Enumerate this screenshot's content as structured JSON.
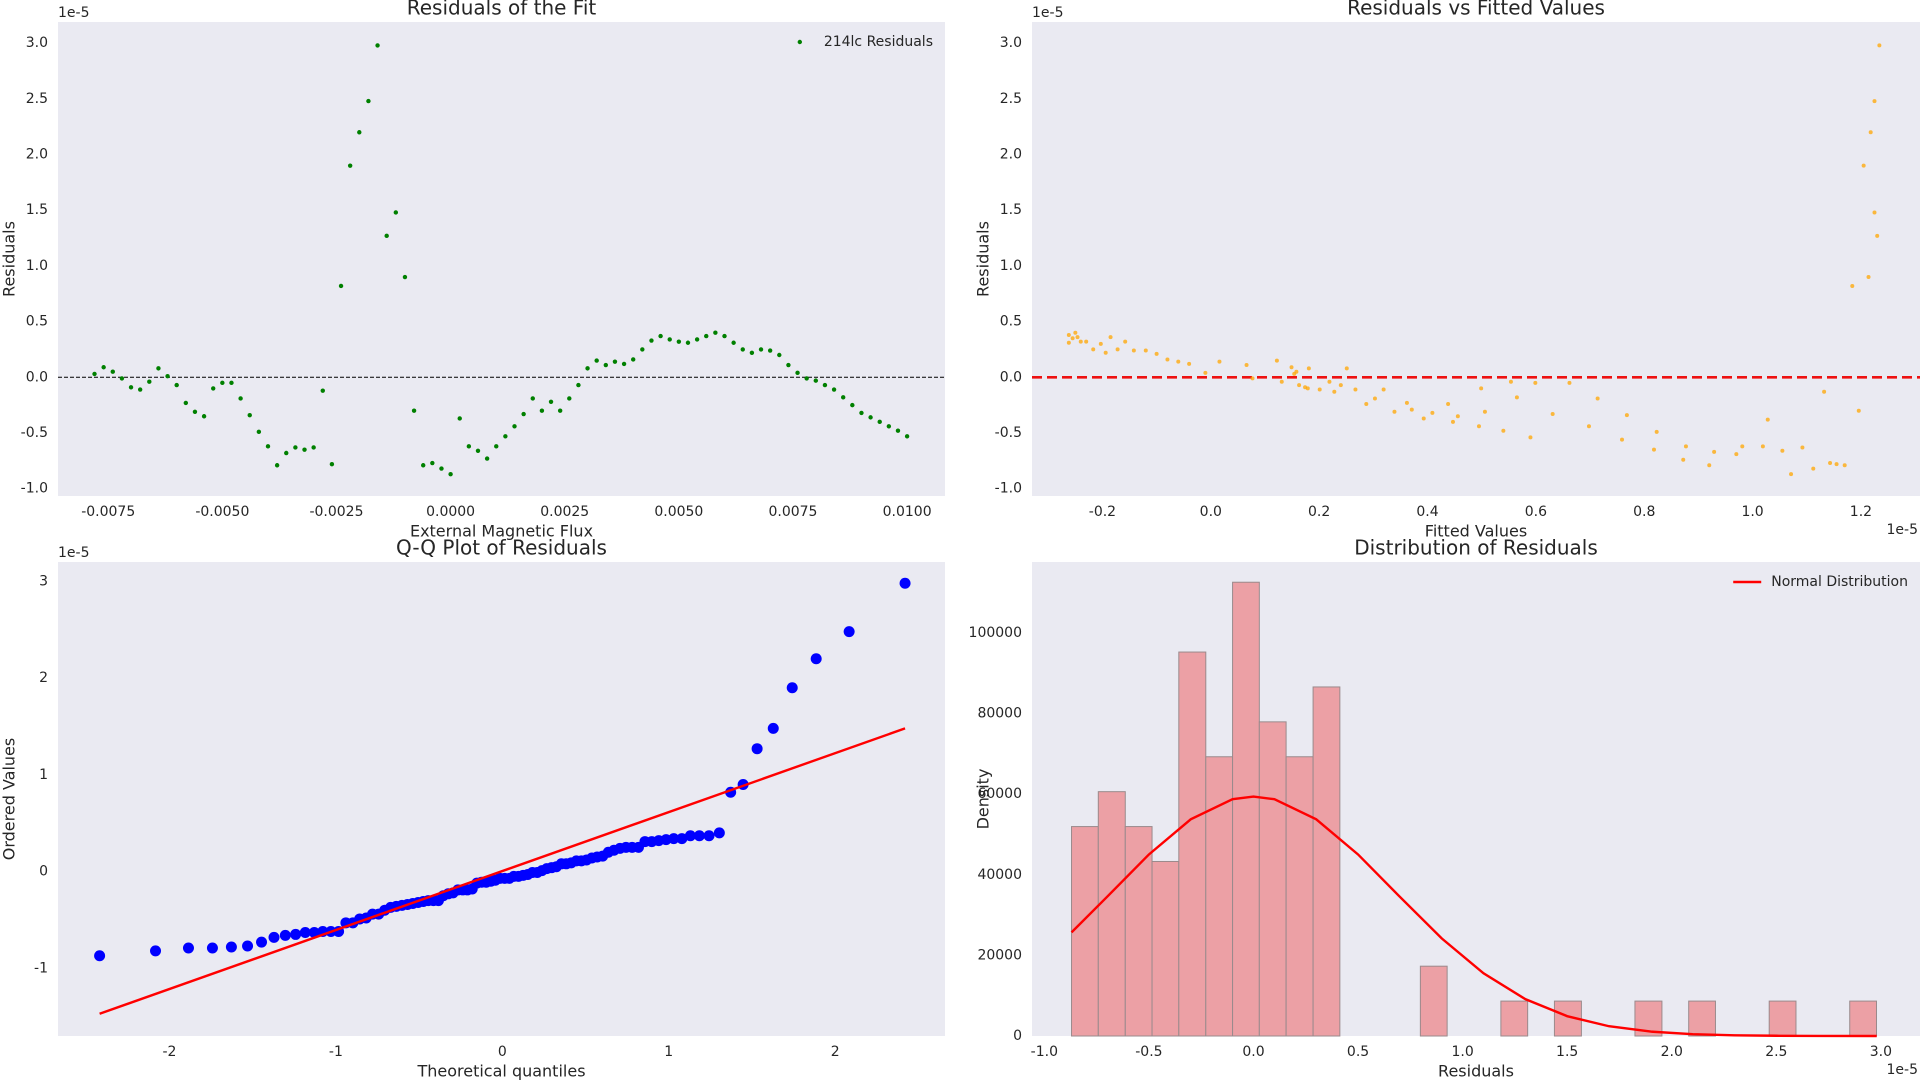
{
  "chart_data": [
    {
      "type": "scatter",
      "title": "Residuals of the Fit",
      "xlabel": "External Magnetic Flux",
      "ylabel": "Residuals",
      "y_offset_label": "1e-5",
      "xlim": [
        -0.0086,
        0.01083
      ],
      "ylim": [
        -1.066,
        3.19
      ],
      "xticks": [
        {
          "value": -0.0075,
          "label": "-0.0075"
        },
        {
          "value": -0.005,
          "label": "-0.0050"
        },
        {
          "value": -0.0025,
          "label": "-0.0025"
        },
        {
          "value": 0,
          "label": "0.0000"
        },
        {
          "value": 0.0025,
          "label": "0.0025"
        },
        {
          "value": 0.005,
          "label": "0.0050"
        },
        {
          "value": 0.0075,
          "label": "0.0075"
        },
        {
          "value": 0.01,
          "label": "0.0100"
        }
      ],
      "yticks": [
        {
          "value": -1,
          "label": "-1.0"
        },
        -0.5,
        {
          "value": 0,
          "label": "0.0"
        },
        0.5,
        {
          "value": 1,
          "label": "1.0"
        },
        1.5,
        {
          "value": 2,
          "label": "2.0"
        },
        2.5,
        {
          "value": 3,
          "label": "3.0"
        }
      ],
      "hline": 0,
      "hline_color": "#000000",
      "legend": "upper right",
      "series": [
        {
          "name": "214lc Residuals",
          "color": "#008000",
          "x": [
            -0.0078,
            -0.0076,
            -0.0074,
            -0.0072,
            -0.007,
            -0.0068,
            -0.0066,
            -0.0064,
            -0.0062,
            -0.006,
            -0.0058,
            -0.0056,
            -0.0054,
            -0.0052,
            -0.005,
            -0.0048,
            -0.0046,
            -0.0044,
            -0.0042,
            -0.004,
            -0.0038,
            -0.0036,
            -0.0034,
            -0.0032,
            -0.003,
            -0.0028,
            -0.0026,
            -0.0024,
            -0.0022,
            -0.002,
            -0.0018,
            -0.0016,
            -0.0014,
            -0.0012,
            -0.001,
            -0.0008,
            -0.0006,
            -0.0004,
            -0.0002,
            0,
            0.0002,
            0.0004,
            0.0006,
            0.0008,
            0.001,
            0.0012,
            0.0014,
            0.0016,
            0.0018,
            0.002,
            0.0022,
            0.0024,
            0.0026,
            0.0028,
            0.003,
            0.0032,
            0.0034,
            0.0036,
            0.0038,
            0.004,
            0.0042,
            0.0044,
            0.0046,
            0.0048,
            0.005,
            0.0052,
            0.0054,
            0.0056,
            0.0058,
            0.006,
            0.0062,
            0.0064,
            0.0066,
            0.0068,
            0.007,
            0.0072,
            0.0074,
            0.0076,
            0.0078,
            0.008,
            0.0082,
            0.0084,
            0.0086,
            0.0088,
            0.009,
            0.0092,
            0.0094,
            0.0096,
            0.0098,
            0.01
          ],
          "y": [
            0.03,
            0.09,
            0.05,
            -0.01,
            -0.09,
            -0.11,
            -0.04,
            0.08,
            0.01,
            -0.07,
            -0.23,
            -0.31,
            -0.35,
            -0.1,
            -0.05,
            -0.05,
            -0.19,
            -0.34,
            -0.49,
            -0.62,
            -0.79,
            -0.68,
            -0.63,
            -0.65,
            -0.63,
            -0.12,
            -0.78,
            0.82,
            1.9,
            2.2,
            2.48,
            2.98,
            1.27,
            1.48,
            0.9,
            -0.3,
            -0.79,
            -0.77,
            -0.82,
            -0.87,
            -0.37,
            -0.62,
            -0.66,
            -0.73,
            -0.62,
            -0.53,
            -0.44,
            -0.33,
            -0.19,
            -0.3,
            -0.22,
            -0.3,
            -0.19,
            -0.07,
            0.08,
            0.15,
            0.11,
            0.14,
            0.12,
            0.16,
            0.25,
            0.33,
            0.37,
            0.34,
            0.32,
            0.31,
            0.34,
            0.37,
            0.4,
            0.37,
            0.31,
            0.25,
            0.22,
            0.25,
            0.24,
            0.2,
            0.11,
            0.04,
            -0.01,
            -0.03,
            -0.07,
            -0.11,
            -0.18,
            -0.25,
            -0.32,
            -0.36,
            -0.4,
            -0.44,
            -0.48,
            -0.53
          ]
        }
      ]
    },
    {
      "type": "scatter",
      "title": "Residuals vs Fitted Values",
      "xlabel": "Fitted Values",
      "ylabel": "Residuals",
      "y_offset_label": "1e-5",
      "x_offset_label": "1e-5",
      "xlim": [
        -0.33,
        1.309
      ],
      "ylim": [
        -1.066,
        3.19
      ],
      "xticks": [
        -0.2,
        {
          "value": 0,
          "label": "0.0"
        },
        0.2,
        0.4,
        0.6,
        0.8,
        {
          "value": 1,
          "label": "1.0"
        },
        1.2
      ],
      "yticks": [
        {
          "value": -1,
          "label": "-1.0"
        },
        -0.5,
        {
          "value": 0,
          "label": "0.0"
        },
        0.5,
        {
          "value": 1,
          "label": "1.0"
        },
        1.5,
        {
          "value": 2,
          "label": "2.0"
        },
        2.5,
        {
          "value": 3,
          "label": "3.0"
        }
      ],
      "hline": 0,
      "hline_color": "#ee1111",
      "series": [
        {
          "color": "#ffa500",
          "x": [
            -0.262,
            -0.255,
            -0.25,
            -0.246,
            -0.262,
            -0.24,
            -0.23,
            -0.217,
            -0.203,
            -0.194,
            -0.185,
            -0.172,
            -0.158,
            -0.142,
            -0.12,
            -0.1,
            -0.08,
            -0.06,
            -0.04,
            -0.01,
            0.016,
            0.066,
            0.077,
            0.122,
            0.131,
            0.149,
            0.154,
            0.158,
            0.163,
            0.174,
            0.181,
            0.179,
            0.201,
            0.219,
            0.228,
            0.24,
            0.251,
            0.267,
            0.287,
            0.303,
            0.319,
            0.339,
            0.362,
            0.371,
            0.393,
            0.409,
            0.438,
            0.447,
            0.456,
            0.495,
            0.499,
            0.506,
            0.54,
            0.554,
            0.565,
            0.59,
            0.599,
            0.631,
            0.662,
            0.698,
            0.714,
            0.759,
            0.768,
            0.818,
            0.823,
            0.872,
            0.877,
            0.92,
            0.929,
            0.97,
            0.981,
            1.019,
            1.028,
            1.055,
            1.071,
            1.092,
            1.112,
            1.132,
            1.143,
            1.155,
            1.17,
            1.184,
            1.196,
            1.205,
            1.214,
            1.218,
            1.225,
            1.225,
            1.23,
            1.234
          ],
          "y": [
            0.38,
            0.35,
            0.4,
            0.36,
            0.31,
            0.32,
            0.32,
            0.25,
            0.3,
            0.22,
            0.36,
            0.25,
            0.32,
            0.24,
            0.24,
            0.21,
            0.16,
            0.14,
            0.12,
            0.04,
            0.14,
            0.11,
            -0.01,
            0.15,
            -0.04,
            0.09,
            0.03,
            0.05,
            -0.07,
            -0.09,
            0.08,
            -0.1,
            -0.11,
            -0.04,
            -0.13,
            -0.07,
            0.08,
            -0.11,
            -0.24,
            -0.19,
            -0.11,
            -0.31,
            -0.23,
            -0.29,
            -0.37,
            -0.32,
            -0.24,
            -0.4,
            -0.35,
            -0.44,
            -0.1,
            -0.31,
            -0.48,
            -0.04,
            -0.18,
            -0.54,
            -0.05,
            -0.33,
            -0.05,
            -0.44,
            -0.19,
            -0.56,
            -0.34,
            -0.65,
            -0.49,
            -0.74,
            -0.62,
            -0.79,
            -0.67,
            -0.69,
            -0.62,
            -0.62,
            -0.38,
            -0.66,
            -0.87,
            -0.63,
            -0.82,
            -0.13,
            -0.77,
            -0.78,
            -0.79,
            0.82,
            -0.3,
            1.9,
            0.9,
            2.2,
            2.48,
            1.48,
            1.27,
            2.98
          ]
        }
      ]
    },
    {
      "type": "scatter",
      "title": "Q-Q Plot of Residuals",
      "xlabel": "Theoretical quantiles",
      "ylabel": "Ordered Values",
      "y_offset_label": "1e-5",
      "xlim": [
        -2.67,
        2.66
      ],
      "ylim": [
        -1.7,
        3.2
      ],
      "xticks": [
        -2,
        -1,
        0,
        1,
        2
      ],
      "yticks": [
        -1,
        0,
        1,
        2,
        3
      ],
      "series": [
        {
          "color": "#0000ff",
          "x": [
            -2.42,
            -2.084,
            -1.886,
            -1.742,
            -1.628,
            -1.531,
            -1.447,
            -1.372,
            -1.304,
            -1.242,
            -1.184,
            -1.13,
            -1.079,
            -1.03,
            -0.984,
            -0.94,
            -0.898,
            -0.857,
            -0.818,
            -0.78,
            -0.743,
            -0.707,
            -0.671,
            -0.637,
            -0.603,
            -0.57,
            -0.538,
            -0.506,
            -0.475,
            -0.445,
            -0.414,
            -0.384,
            -0.355,
            -0.325,
            -0.296,
            -0.267,
            -0.238,
            -0.21,
            -0.181,
            -0.153,
            -0.125,
            -0.097,
            -0.069,
            -0.042,
            -0.014,
            0.014,
            0.042,
            0.069,
            0.097,
            0.125,
            0.153,
            0.181,
            0.21,
            0.238,
            0.267,
            0.296,
            0.325,
            0.355,
            0.384,
            0.414,
            0.445,
            0.475,
            0.506,
            0.538,
            0.57,
            0.603,
            0.637,
            0.671,
            0.707,
            0.743,
            0.78,
            0.818,
            0.857,
            0.898,
            0.94,
            0.984,
            1.03,
            1.079,
            1.13,
            1.184,
            1.242,
            1.304,
            1.372,
            1.447,
            1.531,
            1.628,
            1.742,
            1.886,
            2.084,
            2.42
          ],
          "y": [
            -0.87,
            -0.82,
            -0.79,
            -0.79,
            -0.78,
            -0.77,
            -0.73,
            -0.68,
            -0.66,
            -0.65,
            -0.63,
            -0.63,
            -0.62,
            -0.62,
            -0.62,
            -0.53,
            -0.53,
            -0.49,
            -0.48,
            -0.44,
            -0.44,
            -0.4,
            -0.37,
            -0.36,
            -0.35,
            -0.34,
            -0.33,
            -0.32,
            -0.31,
            -0.3,
            -0.3,
            -0.3,
            -0.25,
            -0.23,
            -0.22,
            -0.19,
            -0.19,
            -0.19,
            -0.18,
            -0.12,
            -0.11,
            -0.11,
            -0.1,
            -0.09,
            -0.07,
            -0.07,
            -0.07,
            -0.05,
            -0.05,
            -0.04,
            -0.03,
            -0.01,
            -0.01,
            0.01,
            0.03,
            0.04,
            0.05,
            0.08,
            0.08,
            0.09,
            0.11,
            0.11,
            0.12,
            0.14,
            0.15,
            0.16,
            0.2,
            0.22,
            0.24,
            0.25,
            0.25,
            0.25,
            0.31,
            0.31,
            0.32,
            0.33,
            0.34,
            0.34,
            0.37,
            0.37,
            0.37,
            0.4,
            0.82,
            0.9,
            1.27,
            1.48,
            1.9,
            2.2,
            2.48,
            2.98
          ]
        },
        {
          "type": "line",
          "color": "#ff0000",
          "x": [
            -2.42,
            2.42
          ],
          "y": [
            -1.47,
            1.48
          ]
        }
      ]
    },
    {
      "type": "histogram",
      "title": "Distribution of Residuals",
      "xlabel": "Residuals",
      "ylabel": "Density",
      "x_offset_label": "1e-5",
      "xlim": [
        -1.059,
        3.187
      ],
      "ylim": [
        0,
        117600
      ],
      "xticks": [
        {
          "value": -1,
          "label": "-1.0"
        },
        -0.5,
        {
          "value": 0,
          "label": "0.0"
        },
        0.5,
        {
          "value": 1,
          "label": "1.0"
        },
        1.5,
        {
          "value": 2,
          "label": "2.0"
        },
        2.5,
        {
          "value": 3,
          "label": "3.0"
        }
      ],
      "yticks": [
        0,
        20000,
        40000,
        60000,
        80000,
        100000
      ],
      "color": "#eca0a5",
      "edgecolor": "#9a8a8c",
      "legend": "upper right",
      "bins": [
        -0.87,
        -0.742,
        -0.613,
        -0.485,
        -0.357,
        -0.228,
        -0.1,
        0.028,
        0.156,
        0.285,
        0.413,
        0.541,
        0.67,
        0.798,
        0.926,
        1.055,
        1.183,
        1.311,
        1.439,
        1.568,
        1.696,
        1.824,
        1.953,
        2.081,
        2.209,
        2.338,
        2.466,
        2.594,
        2.723,
        2.851,
        2.979
      ],
      "values": [
        51960,
        60620,
        51960,
        43300,
        95260,
        69280,
        112580,
        77940,
        69280,
        86600,
        0,
        0,
        0,
        17320,
        0,
        0,
        8660,
        0,
        8660,
        0,
        0,
        8660,
        0,
        8660,
        0,
        0,
        8660,
        0,
        0,
        8660
      ],
      "series": [
        {
          "name": "Normal Distribution",
          "type": "line",
          "color": "#ff0000",
          "x": [
            -0.87,
            -0.7,
            -0.5,
            -0.3,
            -0.1,
            0,
            0.1,
            0.3,
            0.5,
            0.7,
            0.9,
            1.1,
            1.3,
            1.5,
            1.7,
            1.9,
            2.1,
            2.3,
            2.5,
            2.7,
            2.98
          ],
          "y": [
            25700,
            34530,
            45040,
            53770,
            58750,
            59400,
            58750,
            53770,
            45040,
            34530,
            24220,
            15560,
            9150,
            4920,
            2420,
            1090,
            450,
            170,
            59,
            19,
            3
          ]
        }
      ]
    }
  ]
}
